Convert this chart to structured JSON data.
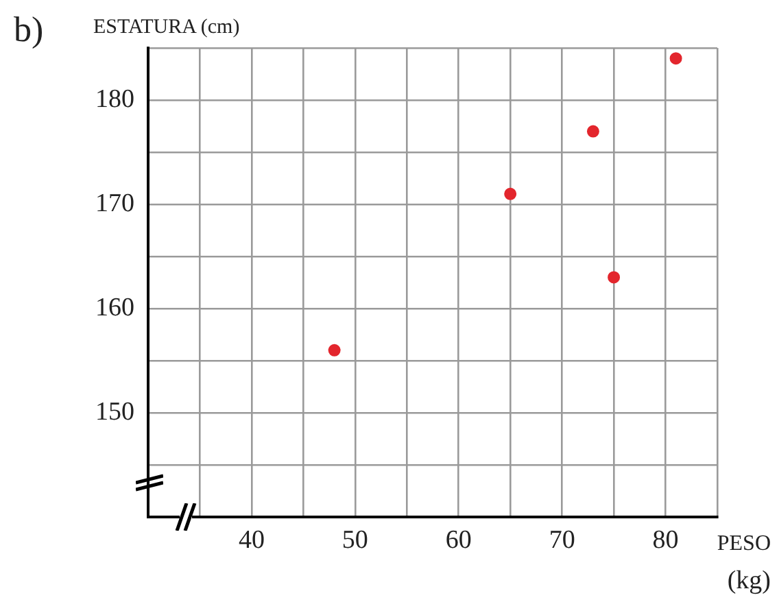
{
  "chart_data": {
    "type": "scatter",
    "annotations": [
      "b)"
    ],
    "xlabel": "PESO (kg)",
    "ylabel": "ESTATURA (cm)",
    "x": [
      48,
      65,
      73,
      75,
      81
    ],
    "series": [
      {
        "color": "#e3262d",
        "values": [
          156,
          171,
          177,
          163,
          184
        ]
      }
    ],
    "xlim": [
      30,
      85
    ],
    "ylim": [
      140,
      185
    ],
    "xticks": [
      {
        "value": 35,
        "label": null
      },
      40,
      {
        "value": 45,
        "label": null
      },
      50,
      {
        "value": 55,
        "label": null
      },
      60,
      {
        "value": 65,
        "label": null
      },
      70,
      {
        "value": 75,
        "label": null
      },
      80,
      {
        "value": 85,
        "label": null
      }
    ],
    "yticks": [
      {
        "value": 145,
        "label": null
      },
      150,
      {
        "value": 155,
        "label": null
      },
      160,
      {
        "value": 165,
        "label": null
      },
      170,
      {
        "value": 175,
        "label": null
      },
      180,
      {
        "value": 185,
        "label": null
      }
    ],
    "grid": true,
    "marker": "circle",
    "legend": false
  }
}
